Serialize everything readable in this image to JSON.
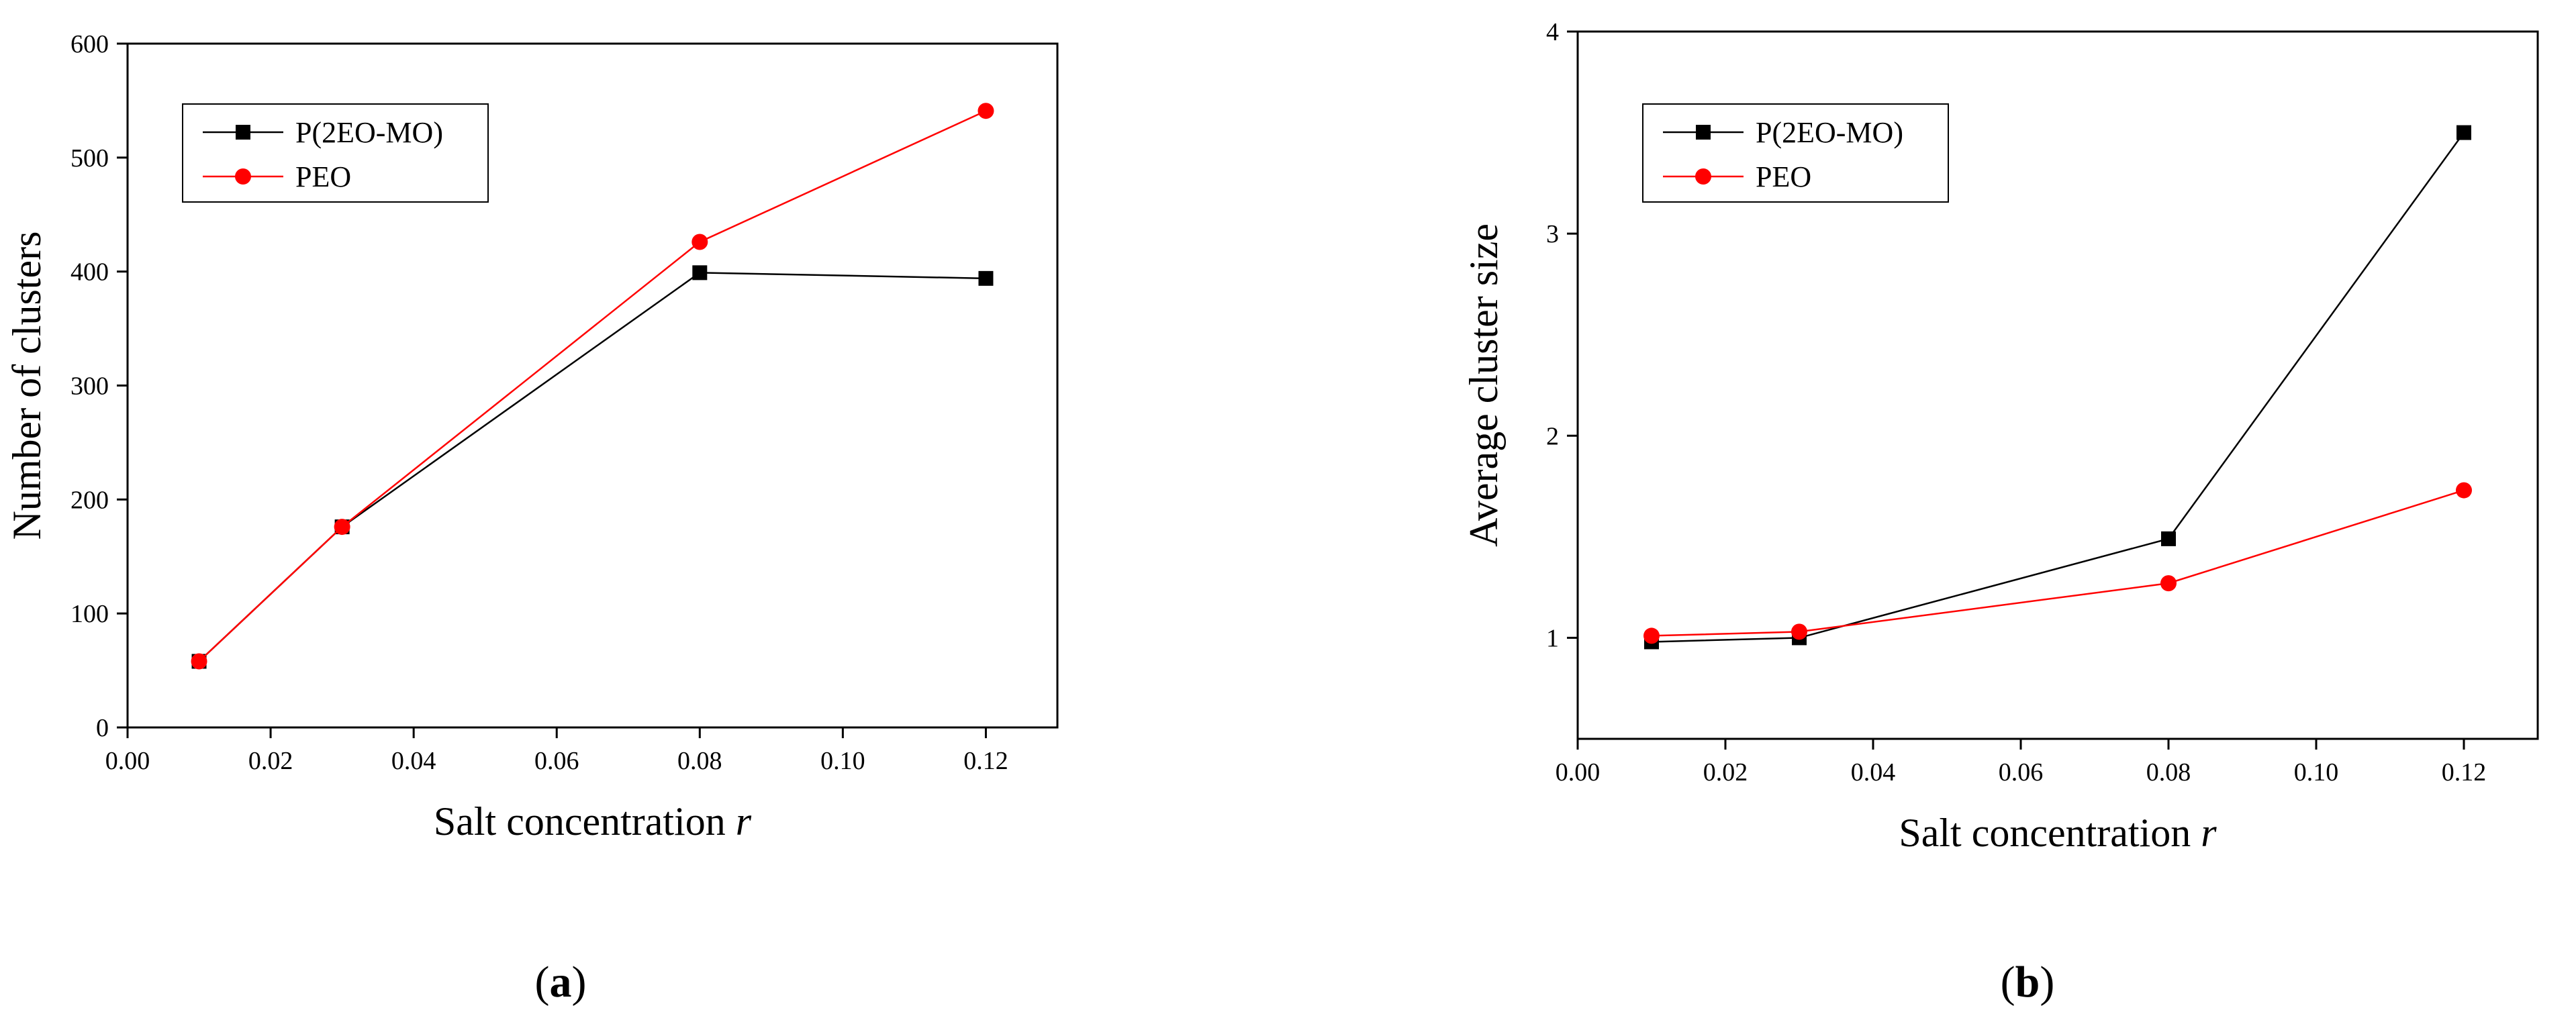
{
  "chart_data": [
    {
      "type": "line",
      "panel_label": "a",
      "xlabel": "Salt concentration",
      "xlabel_var": "r",
      "ylabel": "Number of clusters",
      "xlim": [
        0.0,
        0.13
      ],
      "ylim": [
        0,
        600
      ],
      "xticks": [
        "0.00",
        "0.02",
        "0.04",
        "0.06",
        "0.08",
        "0.10",
        "0.12"
      ],
      "yticks": [
        "0",
        "100",
        "200",
        "300",
        "400",
        "500",
        "600"
      ],
      "legend_position": "top-left",
      "grid": false,
      "series": [
        {
          "name": "P(2EO-MO)",
          "color": "#000000",
          "marker": "square",
          "x": [
            0.01,
            0.03,
            0.08,
            0.12
          ],
          "y": [
            58,
            176,
            399,
            394
          ]
        },
        {
          "name": "PEO",
          "color": "#ff0000",
          "marker": "circle",
          "x": [
            0.01,
            0.03,
            0.08,
            0.12
          ],
          "y": [
            58,
            176,
            426,
            541
          ]
        }
      ]
    },
    {
      "type": "line",
      "panel_label": "b",
      "xlabel": "Salt concentration",
      "xlabel_var": "r",
      "ylabel": "Average cluster size",
      "xlim": [
        0.0,
        0.13
      ],
      "ylim": [
        0.5,
        4
      ],
      "xticks": [
        "0.00",
        "0.02",
        "0.04",
        "0.06",
        "0.08",
        "0.10",
        "0.12"
      ],
      "yticks": [
        "1",
        "2",
        "3",
        "4"
      ],
      "legend_position": "top-left",
      "grid": false,
      "series": [
        {
          "name": "P(2EO-MO)",
          "color": "#000000",
          "marker": "square",
          "x": [
            0.01,
            0.03,
            0.08,
            0.12
          ],
          "y": [
            0.98,
            1.0,
            1.49,
            3.5
          ]
        },
        {
          "name": "PEO",
          "color": "#ff0000",
          "marker": "circle",
          "x": [
            0.01,
            0.03,
            0.08,
            0.12
          ],
          "y": [
            1.01,
            1.03,
            1.27,
            1.73
          ]
        }
      ]
    }
  ]
}
